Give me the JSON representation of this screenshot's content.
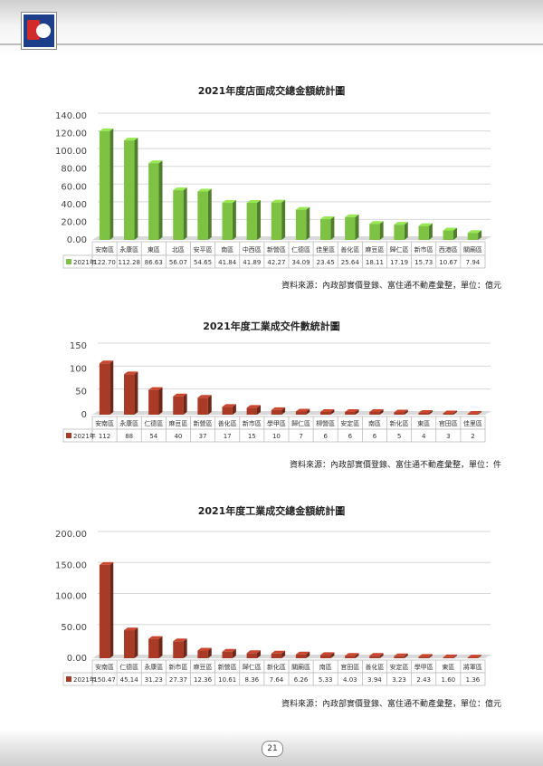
{
  "page": {
    "number": "21"
  },
  "charts": [
    {
      "type": "bar",
      "title": "2021年度店面成交總金額統計圖",
      "source": "資料來源：內政部實價登錄、富住通不動產彙整，單位：億元",
      "series_name": "2021年",
      "categories": [
        "安南區",
        "永康區",
        "東區",
        "北區",
        "安平區",
        "南區",
        "中西區",
        "新營區",
        "仁德區",
        "佳里區",
        "善化區",
        "麻豆區",
        "歸仁區",
        "新市區",
        "西港區",
        "關廟區"
      ],
      "values": [
        122.7,
        112.28,
        86.63,
        56.07,
        54.65,
        41.84,
        41.89,
        42.27,
        34.09,
        23.45,
        25.64,
        18.11,
        17.19,
        15.73,
        10.67,
        7.94
      ],
      "value_labels": [
        "122.70",
        "112.28",
        "86.63",
        "56.07",
        "54.65",
        "41.84",
        "41.89",
        "42.27",
        "34.09",
        "23.45",
        "25.64",
        "18.11",
        "17.19",
        "15.73",
        "10.67",
        "7.94"
      ],
      "yticks": [
        "0.00",
        "20.00",
        "40.00",
        "60.00",
        "80.00",
        "100.00",
        "120.00",
        "140.00"
      ],
      "ylim": [
        0,
        140
      ],
      "color": "#7dc243"
    },
    {
      "type": "bar",
      "title": "2021年度工業成交件數統計圖",
      "source": "資料來源：內政部實價登錄、富住通不動產彙整，單位：件",
      "series_name": "2021年",
      "categories": [
        "安南區",
        "永康區",
        "仁德區",
        "麻豆區",
        "新營區",
        "善化區",
        "新市區",
        "學甲區",
        "歸仁區",
        "柳營區",
        "安定區",
        "南區",
        "新化區",
        "東區",
        "官田區",
        "佳里區"
      ],
      "values": [
        112,
        88,
        54,
        40,
        37,
        17,
        15,
        10,
        7,
        6,
        6,
        6,
        5,
        4,
        3,
        2
      ],
      "value_labels": [
        "112",
        "88",
        "54",
        "40",
        "37",
        "17",
        "15",
        "10",
        "7",
        "6",
        "6",
        "6",
        "5",
        "4",
        "3",
        "2"
      ],
      "yticks": [
        "0",
        "50",
        "100",
        "150"
      ],
      "ylim": [
        0,
        150
      ],
      "color": "#a93a26"
    },
    {
      "type": "bar",
      "title": "2021年度工業成交總金額統計圖",
      "source": "資料來源：內政部實價登錄、富住通不動產彙整，單位：億元",
      "series_name": "2021年",
      "categories": [
        "安南區",
        "仁德區",
        "永康區",
        "新市區",
        "麻豆區",
        "新營區",
        "歸仁區",
        "新化區",
        "關廟區",
        "南區",
        "官田區",
        "善化區",
        "安定區",
        "學甲區",
        "東區",
        "將軍區"
      ],
      "values": [
        150.47,
        45.14,
        31.23,
        27.37,
        12.36,
        10.61,
        8.36,
        7.64,
        6.26,
        5.33,
        4.03,
        3.94,
        3.23,
        2.43,
        1.6,
        1.36
      ],
      "value_labels": [
        "150.47",
        "45.14",
        "31.23",
        "27.37",
        "12.36",
        "10.61",
        "8.36",
        "7.64",
        "6.26",
        "5.33",
        "4.03",
        "3.94",
        "3.23",
        "2.43",
        "1.60",
        "1.36"
      ],
      "yticks": [
        "0.00",
        "50.00",
        "100.00",
        "150.00",
        "200.00"
      ],
      "ylim": [
        0,
        200
      ],
      "color": "#a93a26"
    }
  ]
}
